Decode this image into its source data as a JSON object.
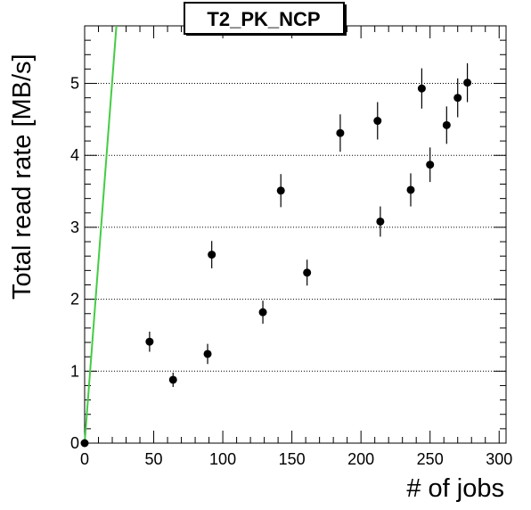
{
  "chart_data": {
    "type": "scatter",
    "title": "T2_PK_NCP",
    "xlabel": "# of jobs",
    "ylabel": "Total read rate [MB/s]",
    "xlim": [
      0,
      305
    ],
    "ylim": [
      0,
      5.8
    ],
    "x_ticks": [
      0,
      50,
      100,
      150,
      200,
      250,
      300
    ],
    "y_ticks": [
      0,
      1,
      2,
      3,
      4,
      5
    ],
    "grid": {
      "horizontal": true,
      "vertical": false
    },
    "series": [
      {
        "type": "scatter-errorbars",
        "color": "#000000",
        "points": [
          {
            "x": 0,
            "y": 0.0,
            "err": 0.02
          },
          {
            "x": 47,
            "y": 1.41,
            "err": 0.14
          },
          {
            "x": 64,
            "y": 0.88,
            "err": 0.1
          },
          {
            "x": 89,
            "y": 1.24,
            "err": 0.14
          },
          {
            "x": 92,
            "y": 2.62,
            "err": 0.19
          },
          {
            "x": 129,
            "y": 1.82,
            "err": 0.16
          },
          {
            "x": 142,
            "y": 3.51,
            "err": 0.23
          },
          {
            "x": 161,
            "y": 2.37,
            "err": 0.18
          },
          {
            "x": 185,
            "y": 4.31,
            "err": 0.26
          },
          {
            "x": 212,
            "y": 4.48,
            "err": 0.26
          },
          {
            "x": 214,
            "y": 3.08,
            "err": 0.21
          },
          {
            "x": 236,
            "y": 3.52,
            "err": 0.23
          },
          {
            "x": 244,
            "y": 4.93,
            "err": 0.28
          },
          {
            "x": 250,
            "y": 3.87,
            "err": 0.24
          },
          {
            "x": 262,
            "y": 4.42,
            "err": 0.26
          },
          {
            "x": 270,
            "y": 4.8,
            "err": 0.27
          },
          {
            "x": 277,
            "y": 5.01,
            "err": 0.27
          }
        ]
      },
      {
        "type": "line",
        "color": "#44cc44",
        "points": [
          {
            "x": 0,
            "y": 0
          },
          {
            "x": 23,
            "y": 5.8
          }
        ]
      }
    ]
  }
}
